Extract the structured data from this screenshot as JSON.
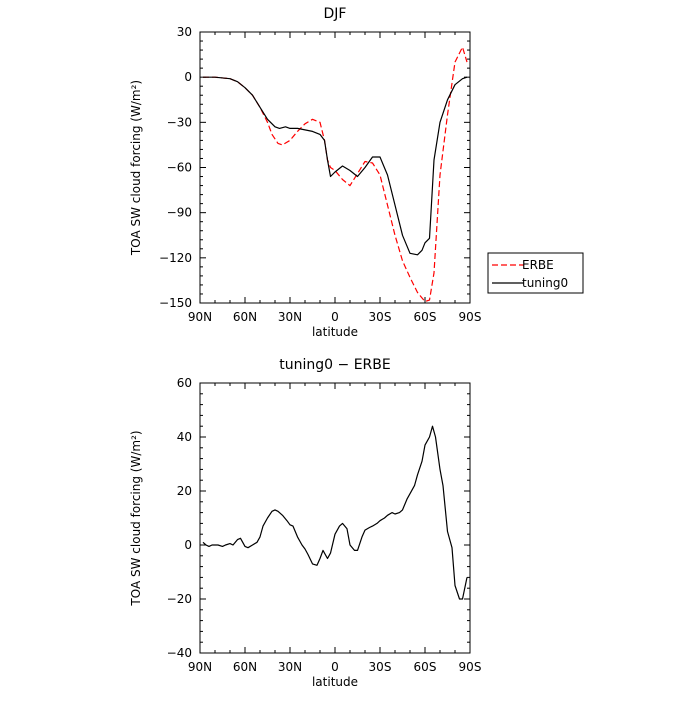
{
  "chart_data": [
    {
      "type": "line",
      "title": "DJF",
      "xlabel": "latitude",
      "ylabel": "TOA SW cloud forcing (W/m²)",
      "xlim": [
        -90,
        90
      ],
      "ylim": [
        -150,
        30
      ],
      "x_ticks": [
        -90,
        -60,
        -30,
        0,
        30,
        60,
        90
      ],
      "x_tick_labels": [
        "90N",
        "60N",
        "30N",
        "0",
        "30S",
        "60S",
        "90S"
      ],
      "y_ticks": [
        30,
        0,
        -30,
        -60,
        -90,
        -120,
        -150
      ],
      "y_tick_labels": [
        "30",
        "0",
        "−30",
        "−60",
        "−90",
        "−120",
        "−150"
      ],
      "grid": false,
      "legend": "right-outside",
      "series": [
        {
          "name": "ERBE",
          "color": "#ff0000",
          "dash": "dashed",
          "x": [
            -88,
            -80,
            -70,
            -65,
            -60,
            -55,
            -50,
            -45,
            -42,
            -38,
            -35,
            -30,
            -25,
            -20,
            -15,
            -10,
            -7,
            -5,
            -3,
            0,
            5,
            10,
            15,
            20,
            25,
            30,
            35,
            40,
            45,
            50,
            55,
            60,
            63,
            66,
            70,
            75,
            80,
            85,
            88
          ],
          "y": [
            0,
            0,
            -1,
            -3,
            -7,
            -12,
            -20,
            -30,
            -38,
            -44,
            -45,
            -42,
            -36,
            -31,
            -28,
            -30,
            -42,
            -55,
            -60,
            -62,
            -68,
            -72,
            -64,
            -56,
            -57,
            -65,
            -85,
            -105,
            -122,
            -133,
            -143,
            -149,
            -148,
            -130,
            -65,
            -25,
            10,
            20,
            10
          ]
        },
        {
          "name": "tuning0",
          "color": "#000000",
          "dash": "solid",
          "x": [
            -88,
            -80,
            -70,
            -65,
            -60,
            -55,
            -50,
            -45,
            -40,
            -37,
            -33,
            -30,
            -25,
            -20,
            -15,
            -10,
            -7,
            -5,
            -3,
            0,
            5,
            10,
            15,
            20,
            25,
            30,
            35,
            40,
            45,
            50,
            55,
            58,
            60,
            63,
            66,
            70,
            75,
            80,
            85,
            88
          ],
          "y": [
            0,
            0,
            -1,
            -3,
            -7,
            -12,
            -20,
            -28,
            -33,
            -34,
            -33,
            -34,
            -34,
            -35,
            -36,
            -38,
            -42,
            -55,
            -66,
            -63,
            -59,
            -62,
            -66,
            -60,
            -53,
            -53,
            -65,
            -85,
            -105,
            -117,
            -118,
            -115,
            -110,
            -107,
            -55,
            -30,
            -15,
            -5,
            -1,
            0
          ]
        }
      ]
    },
    {
      "type": "line",
      "title": "tuning0 − ERBE",
      "xlabel": "latitude",
      "ylabel": "TOA SW cloud forcing (W/m²)",
      "xlim": [
        -90,
        90
      ],
      "ylim": [
        -40,
        60
      ],
      "x_ticks": [
        -90,
        -60,
        -30,
        0,
        30,
        60,
        90
      ],
      "x_tick_labels": [
        "90N",
        "60N",
        "30N",
        "0",
        "30S",
        "60S",
        "90S"
      ],
      "y_ticks": [
        60,
        40,
        20,
        0,
        -20,
        -40
      ],
      "y_tick_labels": [
        "60",
        "40",
        "20",
        "0",
        "−20",
        "−40"
      ],
      "grid": false,
      "legend": "none",
      "series": [
        {
          "color": "#000000",
          "dash": "solid",
          "x": [
            -88,
            -86,
            -84,
            -82,
            -80,
            -78,
            -75,
            -73,
            -70,
            -68,
            -65,
            -63,
            -60,
            -58,
            -55,
            -52,
            -50,
            -48,
            -45,
            -42,
            -40,
            -38,
            -35,
            -32,
            -30,
            -28,
            -25,
            -22,
            -20,
            -18,
            -15,
            -12,
            -10,
            -8,
            -5,
            -3,
            0,
            3,
            5,
            8,
            10,
            13,
            15,
            18,
            20,
            23,
            25,
            28,
            30,
            33,
            35,
            38,
            40,
            43,
            45,
            48,
            50,
            53,
            55,
            58,
            60,
            62,
            63,
            65,
            67,
            70,
            72,
            75,
            78,
            80,
            83,
            85,
            88
          ],
          "y": [
            1,
            0,
            -0.5,
            0,
            0,
            0,
            -0.5,
            0,
            0.5,
            0,
            2,
            2.5,
            -0.5,
            -1,
            0,
            1,
            3,
            7,
            10,
            12.5,
            13,
            12.5,
            11,
            9,
            7.5,
            7,
            3,
            0,
            -1.5,
            -3.5,
            -7,
            -7.5,
            -5,
            -2,
            -5,
            -3,
            4,
            7,
            8,
            6,
            0,
            -2,
            -2,
            3,
            5.5,
            6.5,
            7,
            8,
            9,
            10,
            11,
            12,
            11.5,
            12,
            13,
            17,
            19,
            22,
            26,
            31,
            37,
            39,
            40,
            44,
            40,
            28,
            22,
            5,
            -1,
            -15,
            -20,
            -20,
            -12
          ]
        }
      ]
    }
  ]
}
